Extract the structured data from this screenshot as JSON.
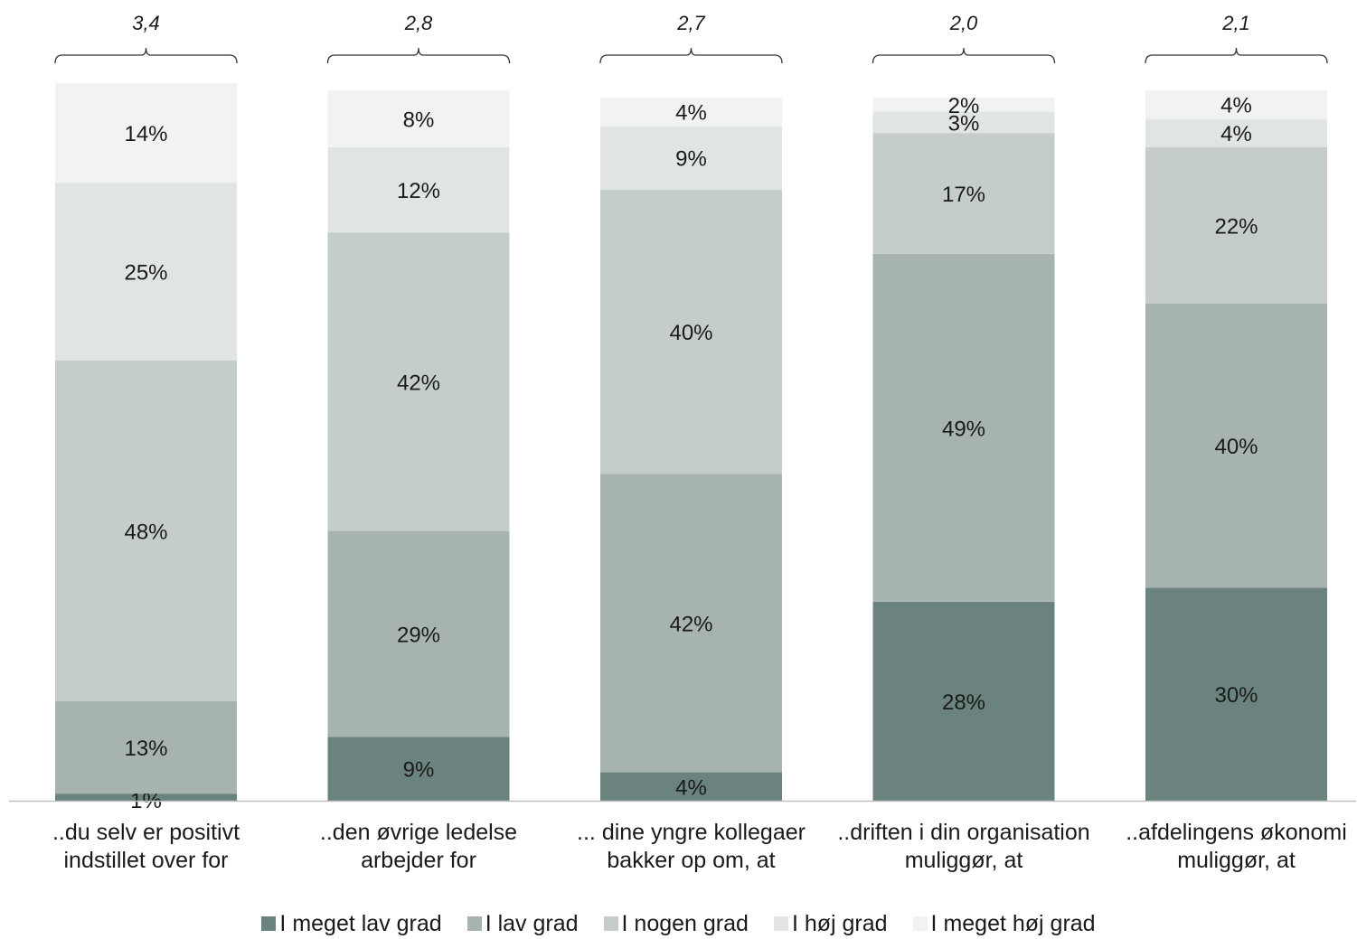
{
  "chart_data": {
    "type": "stacked-bar",
    "categories": [
      [
        "..du selv er positivt",
        "indstillet over for"
      ],
      [
        "..den øvrige ledelse",
        "arbejder for"
      ],
      [
        "... dine yngre kollegaer",
        "bakker op om, at"
      ],
      [
        "..driften i din organisation",
        "muliggør, at"
      ],
      [
        "..afdelingens økonomi",
        "muliggør, at"
      ]
    ],
    "averages": [
      "3,4",
      "2,8",
      "2,7",
      "2,0",
      "2,1"
    ],
    "series": [
      {
        "name": "I meget lav grad",
        "color": "#6b837e",
        "values": [
          1,
          9,
          4,
          28,
          30
        ]
      },
      {
        "name": "I lav grad",
        "color": "#a6b3b1",
        "values": [
          13,
          29,
          42,
          49,
          40
        ]
      },
      {
        "name": "I nogen grad",
        "color": "#c4cdcb",
        "values": [
          48,
          42,
          40,
          17,
          22
        ]
      },
      {
        "name": "I høj grad",
        "color": "#e0e5e3",
        "values": [
          25,
          12,
          9,
          3,
          4
        ]
      },
      {
        "name": "I meget høj grad",
        "color": "#f1f3f2",
        "values": [
          14,
          8,
          4,
          2,
          4
        ]
      }
    ],
    "value_suffix": "%",
    "ylim": [
      0,
      100
    ],
    "grid": false,
    "legend": "bottom"
  }
}
